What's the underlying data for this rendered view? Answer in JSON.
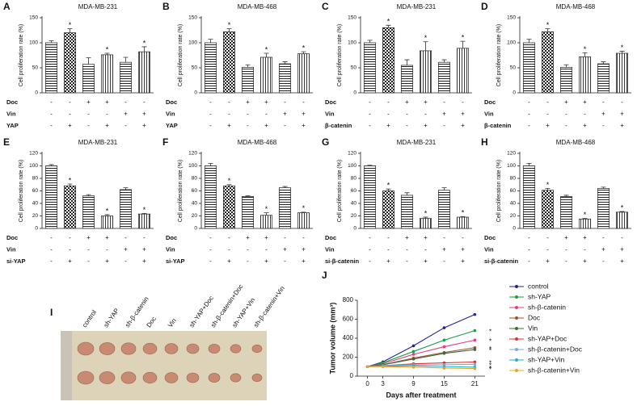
{
  "chart_data": [
    {
      "type": "bar",
      "panel": "A",
      "title": "MDA-MB-231",
      "ylabel": "Cell proliferation rate (%)",
      "ylim": [
        0,
        150
      ],
      "yticks": [
        0,
        50,
        100,
        150
      ],
      "values": [
        100,
        120,
        57,
        76,
        61,
        82
      ],
      "errors": [
        4,
        8,
        13,
        3,
        10,
        10
      ],
      "significance": [
        null,
        "*",
        null,
        "*",
        null,
        "*"
      ],
      "color": "#333333",
      "conditions": [
        {
          "name": "Doc",
          "signs": [
            "-",
            "-",
            "+",
            "+",
            "-",
            "-"
          ]
        },
        {
          "name": "Vin",
          "signs": [
            "-",
            "-",
            "-",
            "-",
            "+",
            "+"
          ]
        },
        {
          "name": "YAP",
          "signs": [
            "-",
            "+",
            "-",
            "+",
            "-",
            "+"
          ]
        }
      ]
    },
    {
      "type": "bar",
      "panel": "B",
      "title": "MDA-MB-468",
      "ylabel": "Cell proliferation rate (%)",
      "ylim": [
        0,
        150
      ],
      "yticks": [
        0,
        50,
        100,
        150
      ],
      "values": [
        100,
        122,
        51,
        71,
        58,
        78
      ],
      "errors": [
        7,
        6,
        5,
        8,
        4,
        4
      ],
      "significance": [
        null,
        "*",
        null,
        "*",
        null,
        "*"
      ],
      "color": "#333333",
      "conditions": [
        {
          "name": "Doc",
          "signs": [
            "-",
            "-",
            "+",
            "+",
            "-",
            "-"
          ]
        },
        {
          "name": "Vin",
          "signs": [
            "-",
            "-",
            "-",
            "-",
            "+",
            "+"
          ]
        },
        {
          "name": "YAP",
          "signs": [
            "-",
            "+",
            "-",
            "+",
            "-",
            "+"
          ]
        }
      ]
    },
    {
      "type": "bar",
      "panel": "C",
      "title": "MDA-MB-231",
      "ylabel": "Cell proliferation rate (%)",
      "ylim": [
        0,
        150
      ],
      "yticks": [
        0,
        50,
        100,
        150
      ],
      "values": [
        100,
        130,
        55,
        84,
        61,
        89
      ],
      "errors": [
        5,
        5,
        11,
        18,
        5,
        14
      ],
      "significance": [
        null,
        "*",
        null,
        "*",
        null,
        "*"
      ],
      "color": "#333333",
      "conditions": [
        {
          "name": "Doc",
          "signs": [
            "-",
            "-",
            "+",
            "+",
            "-",
            "-"
          ]
        },
        {
          "name": "Vin",
          "signs": [
            "-",
            "-",
            "-",
            "-",
            "+",
            "+"
          ]
        },
        {
          "name": "β-catenin",
          "signs": [
            "-",
            "+",
            "-",
            "+",
            "-",
            "+"
          ]
        }
      ]
    },
    {
      "type": "bar",
      "panel": "D",
      "title": "MDA-MB-468",
      "ylabel": "Cell proliferation rate (%)",
      "ylim": [
        0,
        150
      ],
      "yticks": [
        0,
        50,
        100,
        150
      ],
      "values": [
        100,
        122,
        51,
        72,
        58,
        79
      ],
      "errors": [
        7,
        6,
        5,
        8,
        4,
        4
      ],
      "significance": [
        null,
        "*",
        null,
        "*",
        null,
        "*"
      ],
      "color": "#333333",
      "conditions": [
        {
          "name": "Doc",
          "signs": [
            "-",
            "-",
            "+",
            "+",
            "-",
            "-"
          ]
        },
        {
          "name": "Vin",
          "signs": [
            "-",
            "-",
            "-",
            "-",
            "+",
            "+"
          ]
        },
        {
          "name": "β-catenin",
          "signs": [
            "-",
            "+",
            "-",
            "+",
            "-",
            "+"
          ]
        }
      ]
    },
    {
      "type": "bar",
      "panel": "E",
      "title": "MDA-MB-231",
      "ylabel": "Cell proliferation rate (%)",
      "ylim": [
        0,
        120
      ],
      "yticks": [
        0,
        20,
        40,
        60,
        80,
        100,
        120
      ],
      "values": [
        100,
        68,
        52,
        20,
        62,
        23
      ],
      "errors": [
        2,
        3,
        2,
        2,
        3,
        1
      ],
      "significance": [
        null,
        "*",
        null,
        "*",
        null,
        "*"
      ],
      "color": "#333333",
      "conditions": [
        {
          "name": "Doc",
          "signs": [
            "-",
            "-",
            "+",
            "+",
            "-",
            "-"
          ]
        },
        {
          "name": "Vin",
          "signs": [
            "-",
            "-",
            "-",
            "-",
            "+",
            "+"
          ]
        },
        {
          "name": "si-YAP",
          "signs": [
            "-",
            "+",
            "-",
            "+",
            "-",
            "+"
          ]
        }
      ]
    },
    {
      "type": "bar",
      "panel": "F",
      "title": "MDA-MB-468",
      "ylabel": "Cell proliferation rate (%)",
      "ylim": [
        0,
        120
      ],
      "yticks": [
        0,
        20,
        40,
        60,
        80,
        100,
        120
      ],
      "values": [
        100,
        68,
        51,
        21,
        65,
        25
      ],
      "errors": [
        4,
        2,
        1,
        4,
        2,
        1
      ],
      "significance": [
        null,
        "*",
        null,
        "*",
        null,
        "*"
      ],
      "color": "#333333",
      "conditions": [
        {
          "name": "Doc",
          "signs": [
            "-",
            "-",
            "+",
            "+",
            "-",
            "-"
          ]
        },
        {
          "name": "Vin",
          "signs": [
            "-",
            "-",
            "-",
            "-",
            "+",
            "+"
          ]
        },
        {
          "name": "si-YAP",
          "signs": [
            "-",
            "+",
            "-",
            "+",
            "-",
            "+"
          ]
        }
      ]
    },
    {
      "type": "bar",
      "panel": "G",
      "title": "MDA-MB-231",
      "ylabel": "Cell proliferation rate (%)",
      "ylim": [
        0,
        120
      ],
      "yticks": [
        0,
        20,
        40,
        60,
        80,
        100,
        120
      ],
      "values": [
        100,
        60,
        53,
        16,
        61,
        18
      ],
      "errors": [
        1,
        3,
        4,
        2,
        4,
        1
      ],
      "significance": [
        null,
        "*",
        null,
        "*",
        null,
        "*"
      ],
      "color": "#333333",
      "conditions": [
        {
          "name": "Doc",
          "signs": [
            "-",
            "-",
            "+",
            "+",
            "-",
            "-"
          ]
        },
        {
          "name": "Vin",
          "signs": [
            "-",
            "-",
            "-",
            "-",
            "+",
            "+"
          ]
        },
        {
          "name": "si-β-catenin",
          "signs": [
            "-",
            "+",
            "-",
            "+",
            "-",
            "+"
          ]
        }
      ]
    },
    {
      "type": "bar",
      "panel": "H",
      "title": "MDA-MB-468",
      "ylabel": "Cell proliferation rate (%)",
      "ylim": [
        0,
        120
      ],
      "yticks": [
        0,
        20,
        40,
        60,
        80,
        100,
        120
      ],
      "values": [
        100,
        61,
        51,
        15,
        64,
        26
      ],
      "errors": [
        4,
        3,
        2,
        1,
        2,
        1
      ],
      "significance": [
        null,
        "*",
        null,
        "*",
        null,
        "*"
      ],
      "color": "#333333",
      "conditions": [
        {
          "name": "Doc",
          "signs": [
            "-",
            "-",
            "+",
            "+",
            "-",
            "-"
          ]
        },
        {
          "name": "Vin",
          "signs": [
            "-",
            "-",
            "-",
            "-",
            "+",
            "+"
          ]
        },
        {
          "name": "si-β-catenin",
          "signs": [
            "-",
            "+",
            "-",
            "+",
            "-",
            "+"
          ]
        }
      ]
    },
    {
      "type": "image",
      "panel": "I",
      "labels": [
        "control",
        "sh-YAP",
        "sh-β-catenin",
        "Doc",
        "Vin",
        "sh-YAP+Doc",
        "sh-β-catenin+Doc",
        "sh-YAP+Vin",
        "sh-β-catenin+Vin"
      ]
    },
    {
      "type": "line",
      "panel": "J",
      "xlabel": "Days after treatment",
      "ylabel": "Tumor volume (mm³)",
      "x": [
        0,
        3,
        9,
        15,
        21
      ],
      "xlim": [
        -2,
        23
      ],
      "xticks": [
        0,
        3,
        9,
        15,
        21
      ],
      "ylim": [
        0,
        800
      ],
      "yticks": [
        0,
        200,
        400,
        600,
        800
      ],
      "series": [
        {
          "name": "control",
          "color": "#23238e",
          "values": [
            100,
            150,
            320,
            510,
            650
          ]
        },
        {
          "name": "sh-YAP",
          "color": "#1a9a4a",
          "values": [
            100,
            140,
            260,
            380,
            480
          ],
          "significance": "*"
        },
        {
          "name": "sh-β-catenin",
          "color": "#e0407a",
          "values": [
            100,
            130,
            230,
            310,
            380
          ],
          "significance": "*"
        },
        {
          "name": "Doc",
          "color": "#a0522d",
          "values": [
            100,
            120,
            190,
            250,
            300
          ],
          "significance": "*"
        },
        {
          "name": "Vin",
          "color": "#3a6b3a",
          "values": [
            100,
            120,
            180,
            240,
            280
          ],
          "significance": "*"
        },
        {
          "name": "sh-YAP+Doc",
          "color": "#e03030",
          "values": [
            100,
            110,
            130,
            140,
            150
          ],
          "significance": "*"
        },
        {
          "name": "sh-β-catenin+Doc",
          "color": "#7fa8d8",
          "values": [
            100,
            110,
            120,
            120,
            125
          ],
          "significance": "*"
        },
        {
          "name": "sh-YAP+Vin",
          "color": "#20b0d0",
          "values": [
            100,
            105,
            110,
            100,
            95
          ],
          "significance": "*"
        },
        {
          "name": "sh-β-catenin+Vin",
          "color": "#f0a020",
          "values": [
            100,
            100,
            95,
            85,
            80
          ],
          "significance": "*"
        }
      ]
    }
  ]
}
